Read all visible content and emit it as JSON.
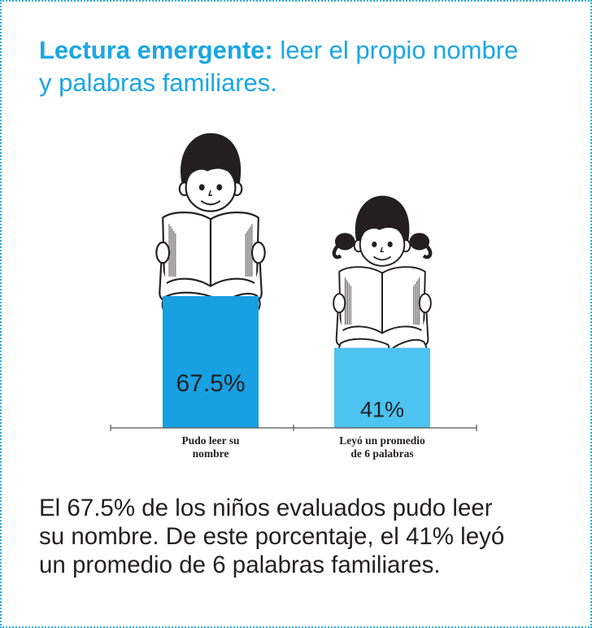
{
  "title": {
    "bold": "Lectura emergente:",
    "rest_line1": "leer el propio nombre",
    "rest_line2": "y palabras familiares."
  },
  "chart_data": {
    "type": "bar",
    "categories": [
      "Pudo leer su nombre",
      "Leyó un promedio de 6 palabras"
    ],
    "category_lines": [
      [
        "Pudo leer su",
        "nombre"
      ],
      [
        "Leyó un promedio",
        "de  6 palabras"
      ]
    ],
    "values": [
      67.5,
      41
    ],
    "value_labels": [
      "67.5%",
      "41%"
    ],
    "colors": [
      "#17a1e3",
      "#4cc3f0"
    ],
    "ylim": [
      0,
      100
    ],
    "title": "",
    "xlabel": "",
    "ylabel": "",
    "grid": false,
    "legend": "none"
  },
  "caption": {
    "line1": "El 67.5% de los niños evaluados pudo leer",
    "line2": "su nombre. De este porcentaje, el 41% leyó",
    "line3": "un promedio de 6 palabras familiares."
  },
  "icons": [
    "boy-reading-illustration",
    "girl-reading-illustration"
  ]
}
